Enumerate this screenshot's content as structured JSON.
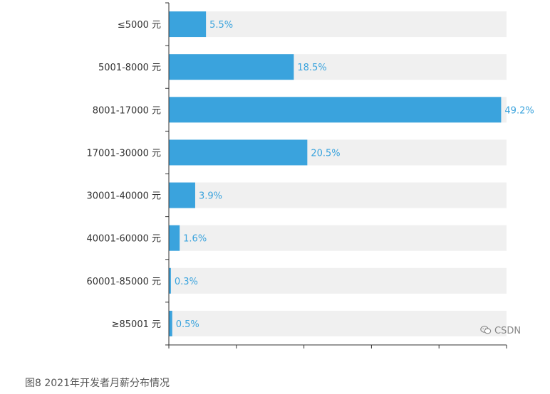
{
  "chart_data": {
    "type": "bar",
    "orientation": "horizontal",
    "categories": [
      "≤5000 元",
      "5001-8000 元",
      "8001-17000 元",
      "17001-30000 元",
      "30001-40000 元",
      "40001-60000 元",
      "60001-85000 元",
      "≥85001 元"
    ],
    "values": [
      5.5,
      18.5,
      49.2,
      20.5,
      3.9,
      1.6,
      0.3,
      0.5
    ],
    "value_labels": [
      "5.5%",
      "18.5%",
      "49.2%",
      "20.5%",
      "3.9%",
      "1.6%",
      "0.3%",
      "0.5%"
    ],
    "xlim": [
      0,
      50
    ],
    "grid": false,
    "bar_color": "#3aa3dd",
    "track_color": "#f0f0f0",
    "label_color": "#3aa3dd"
  },
  "caption": "图8 2021年开发者月薪分布情况",
  "watermark": {
    "icon": "wechat-icon",
    "text": "CSDN"
  }
}
